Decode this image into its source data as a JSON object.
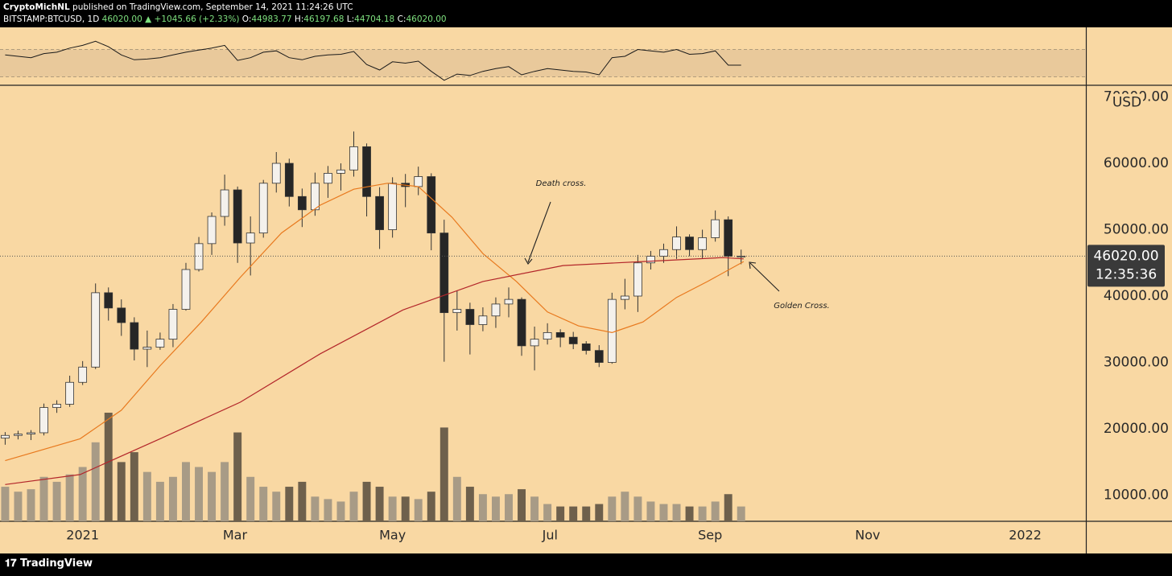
{
  "header": {
    "publisher": "CryptoMichNL",
    "published": "published on TradingView.com, September 14, 2021 11:24:26 UTC",
    "symbol": "BITSTAMP:BTCUSD, 1D",
    "last": "46020.00",
    "change": "+1045.66 (+2.33%)",
    "ohlc": [
      {
        "label": "O:",
        "value": "44983.77"
      },
      {
        "label": "H:",
        "value": "46197.68"
      },
      {
        "label": "L:",
        "value": "44704.18"
      },
      {
        "label": "C:",
        "value": "46020.00"
      }
    ]
  },
  "chart_data": {
    "type": "candlestick",
    "currency": "USD",
    "x": [
      -30,
      -25,
      -20,
      -15,
      -10,
      -5,
      0,
      5,
      10,
      15,
      20,
      25,
      30,
      35,
      40,
      45,
      50,
      55,
      60,
      65,
      70,
      75,
      80,
      85,
      90,
      95,
      100,
      105,
      110,
      115,
      120,
      125,
      130,
      135,
      140,
      145,
      150,
      155,
      160,
      165,
      170,
      175,
      180,
      185,
      190,
      195,
      200,
      205,
      210,
      215,
      220,
      225,
      230,
      235,
      240,
      245,
      250,
      255
    ],
    "open": [
      18600,
      19000,
      19200,
      19400,
      23200,
      23700,
      27000,
      29300,
      40500,
      38200,
      36000,
      32000,
      32300,
      33500,
      38000,
      44000,
      47900,
      52000,
      56000,
      48000,
      49500,
      57000,
      60000,
      55000,
      53000,
      57000,
      58500,
      59000,
      62500,
      55000,
      50000,
      57000,
      56500,
      58000,
      49500,
      37500,
      38000,
      35700,
      37000,
      38800,
      39500,
      32500,
      33500,
      34500,
      33800,
      32800,
      31800,
      30000,
      39500,
      40000,
      45000,
      46000,
      47000,
      48900,
      47000,
      48800,
      51500,
      46000
    ],
    "high": [
      19500,
      19700,
      19800,
      23800,
      24300,
      28000,
      30200,
      41900,
      41300,
      39500,
      36800,
      34800,
      34500,
      38800,
      45000,
      48900,
      52600,
      58300,
      56500,
      52000,
      57500,
      61700,
      60700,
      56200,
      58600,
      59600,
      60000,
      64800,
      63000,
      56400,
      57900,
      58400,
      59500,
      58500,
      51500,
      40800,
      39000,
      38300,
      39800,
      41300,
      39800,
      35400,
      35900,
      35000,
      34600,
      33200,
      32600,
      40500,
      42600,
      46200,
      46800,
      47900,
      50500,
      49300,
      50000,
      52900,
      52000,
      47000
    ],
    "low": [
      17600,
      18400,
      18300,
      19000,
      22400,
      23300,
      26600,
      29000,
      36300,
      34000,
      30300,
      29300,
      31900,
      32300,
      37800,
      43700,
      46200,
      50600,
      45000,
      43100,
      48800,
      55600,
      53500,
      50400,
      52100,
      54800,
      55900,
      58000,
      52000,
      47100,
      48800,
      53400,
      55200,
      46900,
      30100,
      34800,
      31200,
      34700,
      35200,
      36800,
      31000,
      28800,
      32700,
      32300,
      32000,
      31200,
      29300,
      29800,
      38000,
      37600,
      44000,
      45000,
      45600,
      46000,
      45600,
      48200,
      43000,
      44800
    ],
    "close": [
      19000,
      19200,
      19400,
      23200,
      23700,
      27000,
      29300,
      40500,
      38200,
      36000,
      32000,
      32300,
      33500,
      38000,
      44000,
      47900,
      52000,
      56000,
      48000,
      49500,
      57000,
      60000,
      55000,
      53000,
      57000,
      58500,
      59000,
      62500,
      55000,
      50000,
      57000,
      56500,
      58000,
      49500,
      37500,
      38000,
      35700,
      37000,
      38800,
      39500,
      32500,
      33500,
      34500,
      33800,
      32800,
      31800,
      30000,
      39500,
      40000,
      45000,
      46000,
      47000,
      48900,
      47000,
      48800,
      51500,
      46000,
      46020
    ],
    "volume": [
      7000,
      6000,
      6500,
      9000,
      8000,
      9500,
      11000,
      16000,
      22000,
      12000,
      14000,
      10000,
      8000,
      9000,
      12000,
      11000,
      10000,
      12000,
      18000,
      9000,
      7000,
      6000,
      7000,
      8000,
      5000,
      4500,
      4000,
      6000,
      8000,
      7000,
      5000,
      5000,
      4500,
      6000,
      19000,
      9000,
      7000,
      5500,
      5000,
      5500,
      6500,
      5000,
      3500,
      3000,
      3000,
      3000,
      3500,
      5000,
      6000,
      5000,
      4000,
      3500,
      3500,
      3000,
      3000,
      4000,
      5500,
      3000
    ],
    "rsi": [
      62,
      60,
      58,
      64,
      66,
      72,
      76,
      82,
      74,
      62,
      55,
      56,
      58,
      62,
      66,
      69,
      72,
      76,
      54,
      58,
      66,
      68,
      58,
      55,
      60,
      62,
      63,
      67,
      48,
      40,
      52,
      50,
      53,
      38,
      25,
      34,
      32,
      38,
      42,
      45,
      33,
      38,
      42,
      40,
      38,
      37,
      33,
      58,
      60,
      70,
      68,
      66,
      70,
      63,
      64,
      68,
      47,
      47
    ],
    "rsi_bands": [
      30,
      70
    ],
    "rsi_lim": [
      20,
      100
    ],
    "volume_lim": [
      0,
      88000
    ],
    "up_color": "#f4f1ec",
    "down_color": "#262626",
    "volume_up_color": "#a89b86",
    "volume_down_color": "#6e604c",
    "rsi_color": "#1a1a1a",
    "lines": [
      {
        "color": "#e8791e",
        "x": [
          -30,
          -1,
          15,
          30,
          46,
          61,
          77,
          92,
          105,
          118,
          130,
          143,
          155,
          168,
          180,
          192,
          205,
          217,
          230,
          242,
          256
        ],
        "values": [
          15200,
          18500,
          22800,
          29500,
          36100,
          42800,
          49500,
          53700,
          56100,
          57000,
          56500,
          51900,
          46400,
          42200,
          37600,
          35500,
          34500,
          36100,
          39800,
          42200,
          45200
        ]
      },
      {
        "color": "#b3262a",
        "x": [
          -30,
          -1,
          30,
          61,
          92,
          124,
          155,
          186,
          217,
          248,
          256
        ],
        "values": [
          11600,
          13100,
          18500,
          24000,
          31300,
          37900,
          42200,
          44600,
          45200,
          45800,
          45600
        ]
      }
    ],
    "last_price": {
      "value": 46020,
      "label": "46020.00"
    },
    "countdown": "12:35:36",
    "xlim": [
      -32,
      388.5
    ],
    "ylim": [
      6060,
      71520
    ],
    "xticks": [
      {
        "value": 0,
        "label": "2021"
      },
      {
        "value": 59,
        "label": "Mar"
      },
      {
        "value": 120,
        "label": "May"
      },
      {
        "value": 181,
        "label": "Jul"
      },
      {
        "value": 243,
        "label": "Sep"
      },
      {
        "value": 304,
        "label": "Nov"
      },
      {
        "value": 365,
        "label": "2022"
      }
    ],
    "yticks": [
      {
        "value": 10000,
        "label": "10000.00"
      },
      {
        "value": 20000,
        "label": "20000.00"
      },
      {
        "value": 30000,
        "label": "30000.00"
      },
      {
        "value": 40000,
        "label": "40000.00"
      },
      {
        "value": 50000,
        "label": "50000.00"
      },
      {
        "value": 60000,
        "label": "60000.00"
      },
      {
        "value": 70000,
        "label": "70000.00"
      }
    ],
    "grid": false,
    "annotations": [
      {
        "text": "Death cross."
      },
      {
        "text": "Golden Cross."
      }
    ]
  },
  "footer": {
    "brand": "TradingView"
  }
}
